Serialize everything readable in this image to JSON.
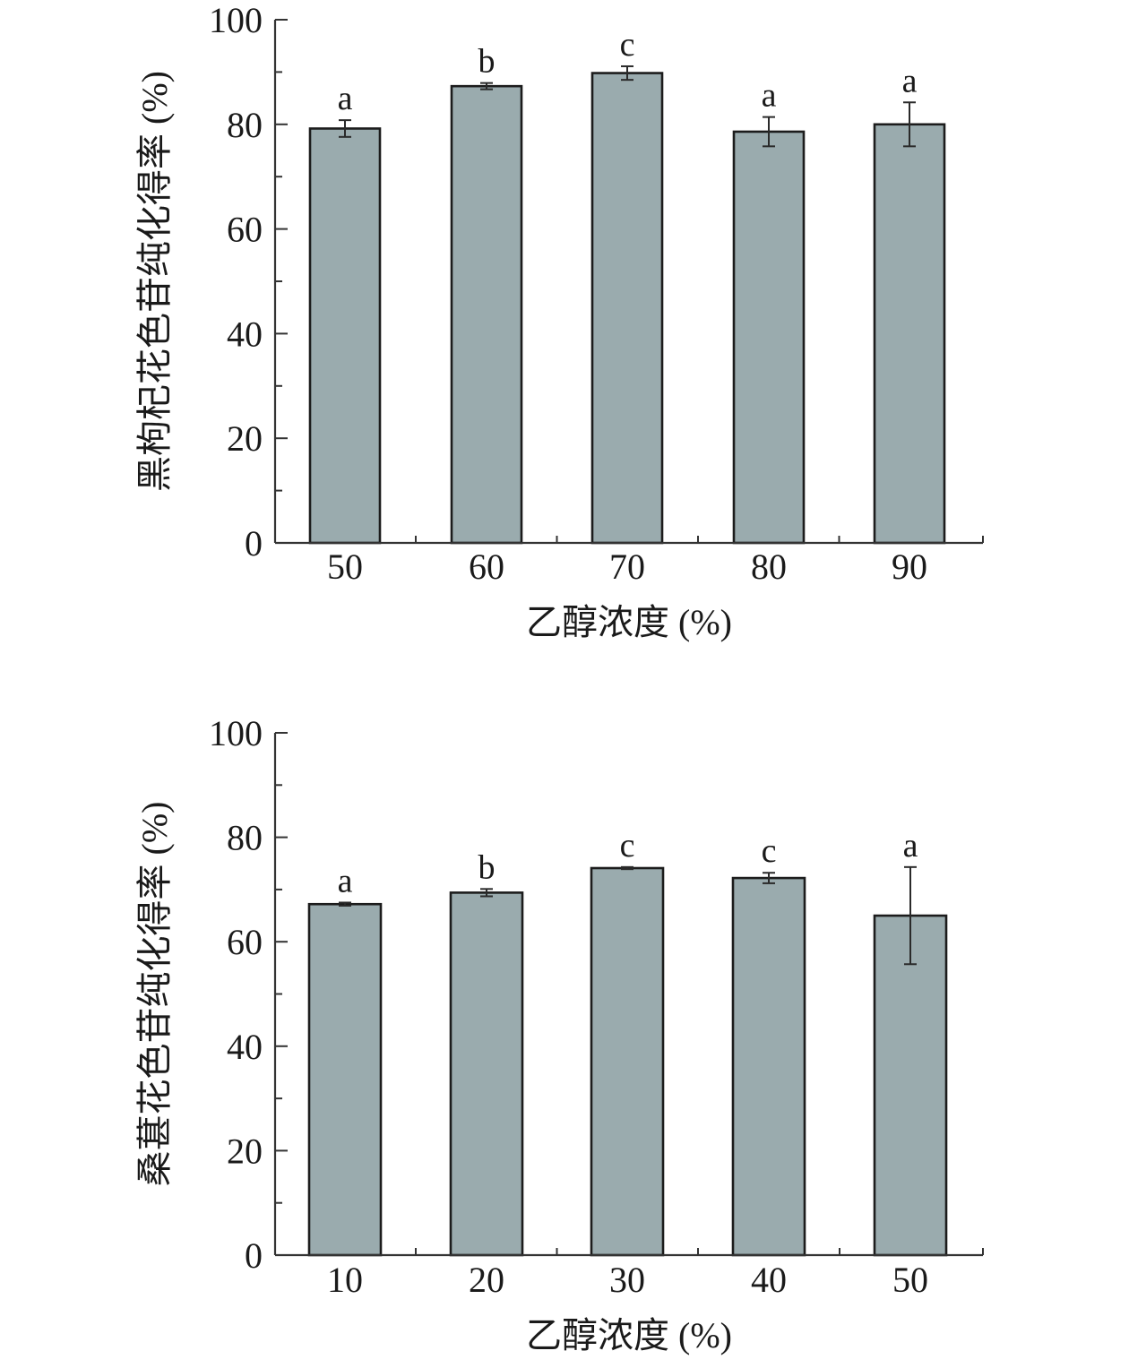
{
  "chart_data": [
    {
      "type": "bar",
      "categories": [
        "50",
        "60",
        "70",
        "80",
        "90"
      ],
      "values": [
        79.2,
        87.3,
        89.8,
        78.6,
        80.0
      ],
      "errors": [
        1.6,
        0.6,
        1.3,
        2.8,
        4.2
      ],
      "group_labels": [
        "a",
        "b",
        "c",
        "a",
        "a"
      ],
      "xlabel": "乙醇浓度 (%)",
      "ylabel": "黑枸杞花色苷纯化得率 (%)",
      "ylim": [
        0,
        100
      ],
      "yticks": [
        0,
        20,
        40,
        60,
        80,
        100
      ],
      "bar_color": "#9aabae",
      "grid": false
    },
    {
      "type": "bar",
      "categories": [
        "10",
        "20",
        "30",
        "40",
        "50"
      ],
      "values": [
        67.2,
        69.4,
        74.1,
        72.2,
        65.0
      ],
      "errors": [
        0.3,
        0.7,
        0.2,
        1.0,
        9.3
      ],
      "group_labels": [
        "a",
        "b",
        "c",
        "c",
        "a"
      ],
      "xlabel": "乙醇浓度 (%)",
      "ylabel": "桑葚花色苷纯化得率 (%)",
      "ylim": [
        0,
        100
      ],
      "yticks": [
        0,
        20,
        40,
        60,
        80,
        100
      ],
      "bar_color": "#9aabae",
      "grid": false
    }
  ]
}
